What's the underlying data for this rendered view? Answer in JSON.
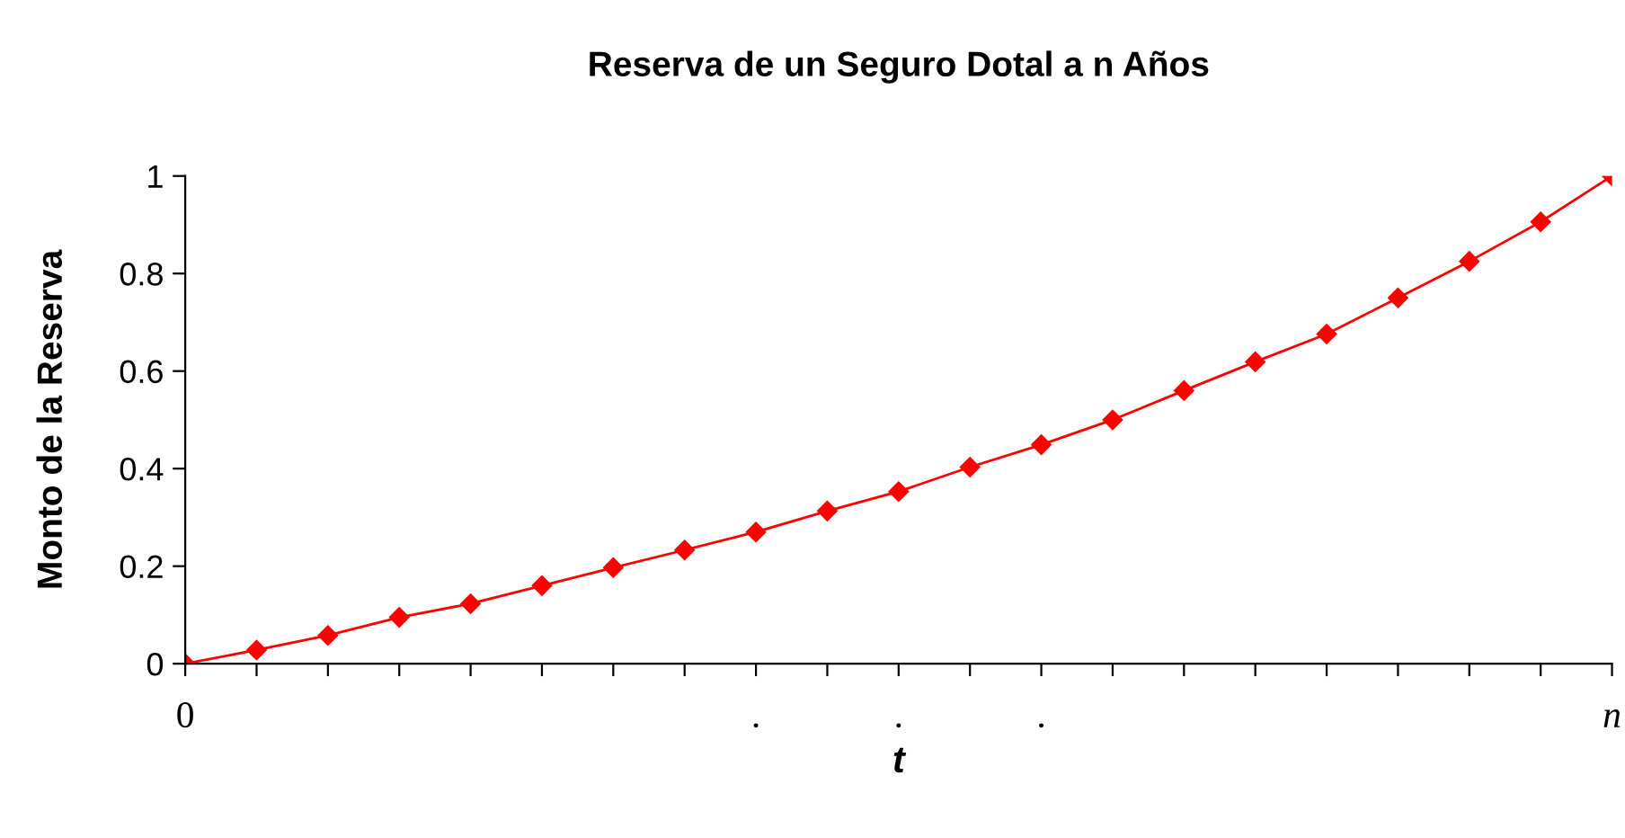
{
  "chart_data": {
    "type": "line",
    "title": "Reserva de un Seguro Dotal a n Años",
    "xlabel": "t",
    "ylabel": "Monto de la Reserva",
    "categories": [
      "0",
      null,
      null,
      null,
      null,
      null,
      null,
      null,
      ".",
      null,
      ".",
      null,
      ".",
      null,
      null,
      null,
      null,
      null,
      null,
      null,
      "n"
    ],
    "series": [
      {
        "color": "#ff0000",
        "values": [
          0,
          0.028,
          0.058,
          0.095,
          0.123,
          0.16,
          0.197,
          0.233,
          0.27,
          0.313,
          0.353,
          0.403,
          0.449,
          0.5,
          0.56,
          0.619,
          0.676,
          0.75,
          0.825,
          0.906,
          1.0
        ]
      }
    ],
    "ylim": [
      0,
      1
    ],
    "yticks": [
      0,
      0.2,
      0.4,
      0.6,
      0.8,
      1
    ],
    "grid": false,
    "legend": false,
    "marker": "diamond",
    "line_style": "solid"
  }
}
